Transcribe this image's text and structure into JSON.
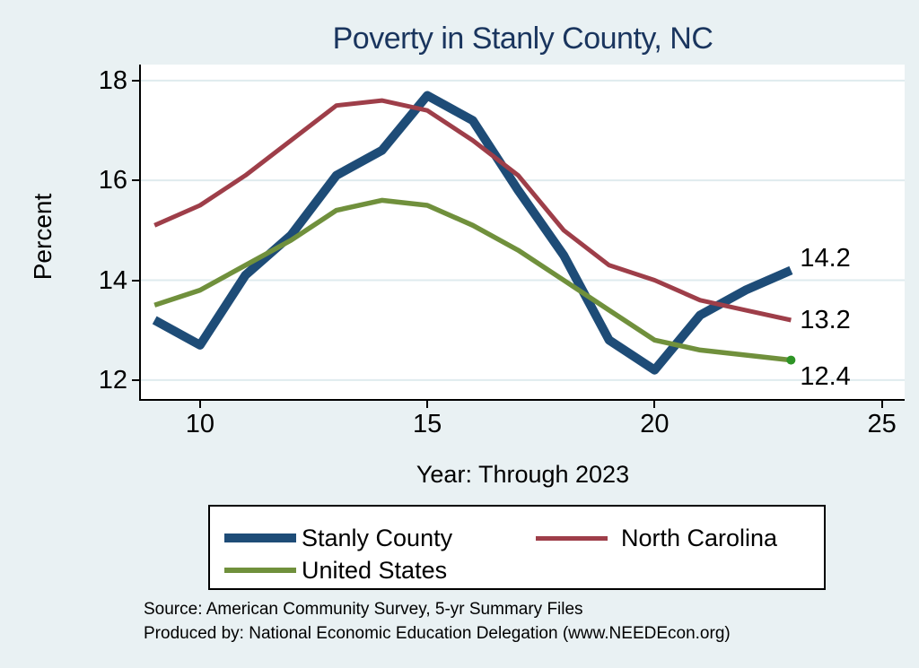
{
  "page": {
    "source_line1": "Source: American Community Survey, 5-yr Summary Files",
    "source_line2": "Produced by: National Economic Education Delegation (www.NEEDEcon.org)",
    "colors": {
      "background": "#e9f1f3",
      "plot_background": "#ffffff",
      "gridline": "#dfebee",
      "axis": "#000000",
      "title": "#1a355e",
      "text": "#000000"
    }
  },
  "chart_data": {
    "type": "line",
    "title": "Poverty in Stanly County, NC",
    "xlabel": "Year: Through 2023",
    "ylabel": "Percent",
    "grid": "horizontal",
    "legend_position": "bottom-box",
    "x": [
      9,
      10,
      11,
      12,
      13,
      14,
      15,
      16,
      17,
      18,
      19,
      20,
      21,
      22,
      23
    ],
    "xlim": [
      8.7,
      25.5
    ],
    "ylim": [
      11.62,
      18.32
    ],
    "xticks": [
      {
        "value": 10,
        "label": "10"
      },
      {
        "value": 15,
        "label": "15"
      },
      {
        "value": 20,
        "label": "20"
      },
      {
        "value": 25,
        "label": "25"
      }
    ],
    "yticks": [
      {
        "value": 12,
        "label": "12"
      },
      {
        "value": 14,
        "label": "14"
      },
      {
        "value": 16,
        "label": "16"
      },
      {
        "value": 18,
        "label": "18"
      }
    ],
    "series": [
      {
        "name": "Stanly County",
        "color": "#1e4c77",
        "line_width": 10,
        "values": [
          13.2,
          12.7,
          14.1,
          14.9,
          16.1,
          16.6,
          17.7,
          17.2,
          15.8,
          14.5,
          12.8,
          12.2,
          13.3,
          13.8,
          14.2
        ],
        "end_label": "14.2"
      },
      {
        "name": "North Carolina",
        "color": "#9e3e49",
        "line_width": 5,
        "values": [
          15.1,
          15.5,
          16.1,
          16.8,
          17.5,
          17.6,
          17.4,
          16.8,
          16.1,
          15.0,
          14.3,
          14.0,
          13.6,
          13.4,
          13.2
        ],
        "end_label": "13.2"
      },
      {
        "name": "United States",
        "color": "#70903c",
        "line_width": 5.5,
        "values": [
          13.5,
          13.8,
          14.3,
          14.8,
          15.4,
          15.6,
          15.5,
          15.1,
          14.6,
          14.0,
          13.4,
          12.8,
          12.6,
          12.5,
          12.4
        ],
        "end_label": "12.4",
        "end_marker": true,
        "end_marker_color": "#2e9426"
      }
    ]
  }
}
